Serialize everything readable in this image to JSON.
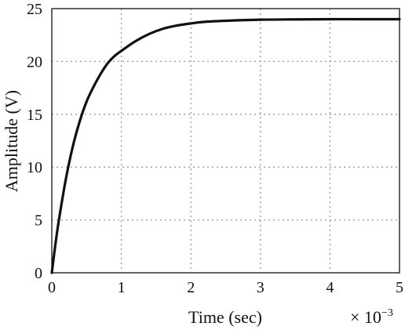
{
  "chart_data": {
    "type": "line",
    "xlabel": "Time (sec)",
    "ylabel": "Amplitude (V)",
    "x_multiplier": "× 10",
    "x_multiplier_exp": "−3",
    "xlim": [
      0,
      5
    ],
    "ylim": [
      0,
      25
    ],
    "xticks": [
      0,
      1,
      2,
      3,
      4,
      5
    ],
    "yticks": [
      0,
      5,
      10,
      15,
      20,
      25
    ],
    "grid": true,
    "series": [
      {
        "color": "#111111",
        "x": [
          0,
          0.05,
          0.1,
          0.2,
          0.3,
          0.4,
          0.5,
          0.6,
          0.7,
          0.8,
          0.9,
          1.0,
          1.2,
          1.4,
          1.6,
          1.8,
          2.0,
          2.2,
          2.5,
          3.0,
          3.5,
          4.0,
          4.5,
          5.0
        ],
        "y": [
          0,
          2.6,
          4.9,
          8.8,
          11.9,
          14.3,
          16.2,
          17.6,
          18.8,
          19.8,
          20.5,
          21.0,
          21.9,
          22.6,
          23.1,
          23.4,
          23.6,
          23.75,
          23.85,
          23.95,
          23.98,
          24.0,
          24.0,
          24.0
        ]
      }
    ]
  }
}
